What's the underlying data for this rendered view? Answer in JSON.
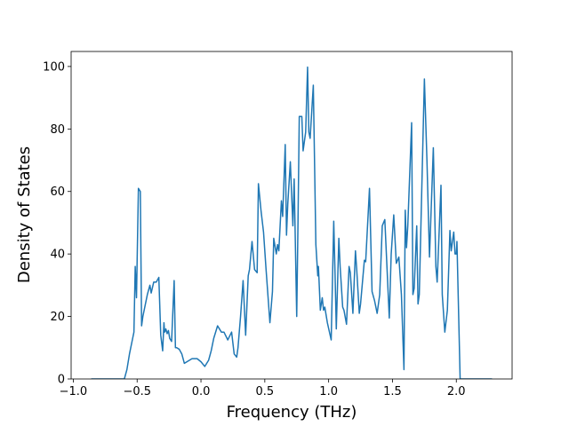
{
  "chart_data": {
    "type": "line",
    "xlabel": "Frequency (THz)",
    "ylabel": "Density of States",
    "x": [
      -0.86,
      -0.6,
      -0.58,
      -0.56,
      -0.54,
      -0.525,
      -0.515,
      -0.505,
      -0.49,
      -0.475,
      -0.465,
      -0.455,
      -0.44,
      -0.42,
      -0.4,
      -0.39,
      -0.37,
      -0.35,
      -0.33,
      -0.315,
      -0.3,
      -0.29,
      -0.285,
      -0.275,
      -0.265,
      -0.255,
      -0.245,
      -0.23,
      -0.21,
      -0.2,
      -0.19,
      -0.17,
      -0.15,
      -0.13,
      -0.11,
      -0.07,
      -0.03,
      0.0,
      0.03,
      0.06,
      0.08,
      0.1,
      0.13,
      0.16,
      0.18,
      0.21,
      0.24,
      0.26,
      0.28,
      0.29,
      0.31,
      0.33,
      0.35,
      0.37,
      0.38,
      0.4,
      0.42,
      0.44,
      0.45,
      0.47,
      0.49,
      0.51,
      0.54,
      0.56,
      0.57,
      0.59,
      0.6,
      0.61,
      0.63,
      0.64,
      0.66,
      0.67,
      0.68,
      0.7,
      0.72,
      0.73,
      0.75,
      0.76,
      0.77,
      0.79,
      0.8,
      0.82,
      0.835,
      0.845,
      0.855,
      0.88,
      0.9,
      0.915,
      0.92,
      0.935,
      0.95,
      0.96,
      0.97,
      0.99,
      1.02,
      1.04,
      1.05,
      1.06,
      1.08,
      1.09,
      1.11,
      1.12,
      1.14,
      1.16,
      1.17,
      1.19,
      1.21,
      1.22,
      1.24,
      1.25,
      1.28,
      1.29,
      1.32,
      1.34,
      1.36,
      1.38,
      1.4,
      1.42,
      1.44,
      1.475,
      1.49,
      1.51,
      1.53,
      1.55,
      1.57,
      1.59,
      1.6,
      1.61,
      1.62,
      1.65,
      1.66,
      1.67,
      1.69,
      1.7,
      1.71,
      1.75,
      1.77,
      1.79,
      1.82,
      1.84,
      1.85,
      1.88,
      1.89,
      1.91,
      1.93,
      1.95,
      1.96,
      1.98,
      1.99,
      2.0,
      2.005,
      2.03,
      2.28
    ],
    "series": [
      {
        "color": "#1f77b4",
        "values": [
          0,
          0,
          3,
          8,
          12,
          15,
          36,
          26,
          61,
          60,
          17,
          20,
          23,
          27,
          30,
          27.5,
          31,
          31,
          32.5,
          14,
          9,
          18,
          15,
          16,
          14.5,
          15.5,
          13,
          12,
          31.5,
          10,
          10,
          9.5,
          8,
          5,
          5.5,
          6.5,
          6.5,
          5.5,
          4,
          6,
          9,
          13,
          17,
          15,
          15,
          12.5,
          15,
          8,
          7,
          10,
          20,
          31.5,
          14,
          33,
          35,
          44,
          35,
          34,
          62.5,
          54,
          47,
          35,
          18,
          28,
          45,
          40,
          43,
          41,
          57,
          52,
          75,
          46,
          56,
          69.5,
          49,
          64,
          20,
          50,
          84,
          84,
          73,
          79,
          99.8,
          79,
          77,
          94,
          43,
          33,
          36,
          22,
          26,
          22,
          23,
          18,
          12.5,
          50.5,
          34,
          16,
          45,
          36,
          23,
          22,
          17.5,
          36,
          34,
          21,
          41,
          35,
          21,
          24,
          38,
          37.5,
          61,
          28,
          25,
          21,
          27,
          49,
          51,
          19.5,
          40,
          52.5,
          37,
          39,
          27,
          3,
          54,
          42,
          49,
          82,
          27,
          29,
          49,
          24,
          27,
          96,
          70,
          39,
          74,
          36,
          31,
          62,
          27,
          15,
          22,
          47.5,
          41,
          47,
          40,
          40,
          44,
          0,
          0
        ]
      }
    ],
    "xlim": [
      -1.017,
      2.437
    ],
    "ylim": [
      0,
      104.8
    ],
    "xticks": [
      {
        "value": -1.0,
        "label": "−1.0"
      },
      {
        "value": -0.5,
        "label": "−0.5"
      },
      {
        "value": 0.0,
        "label": "0.0"
      },
      {
        "value": 0.5,
        "label": "0.5"
      },
      {
        "value": 1.0,
        "label": "1.0"
      },
      {
        "value": 1.5,
        "label": "1.5"
      },
      {
        "value": 2.0,
        "label": "2.0"
      }
    ],
    "yticks": [
      0,
      20,
      40,
      60,
      80,
      100
    ]
  }
}
